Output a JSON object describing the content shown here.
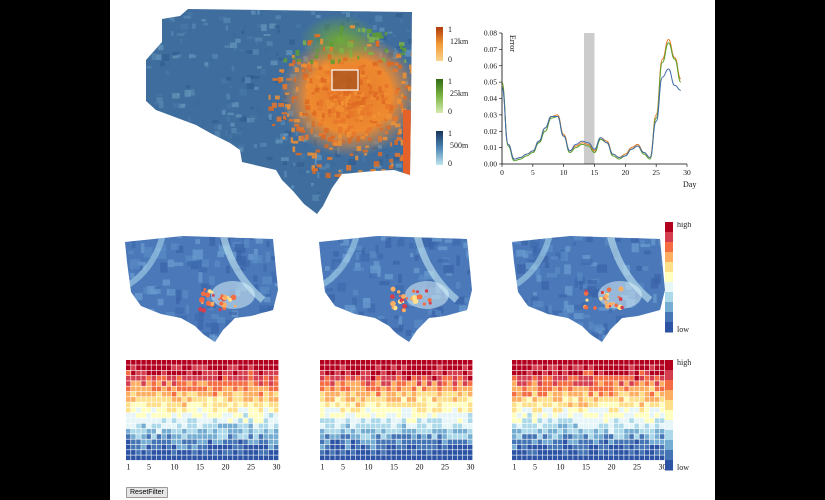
{
  "scale_legends": [
    {
      "name": "12km",
      "max": "1",
      "min": "0",
      "colors": [
        "#b03a0c",
        "#f29a35",
        "#fbd38a"
      ]
    },
    {
      "name": "25km",
      "max": "1",
      "min": "0",
      "colors": [
        "#2f6b13",
        "#7db544",
        "#d4ebb0"
      ]
    },
    {
      "name": "500m",
      "max": "1",
      "min": "0",
      "colors": [
        "#15345c",
        "#4f86b5",
        "#bfe5ef"
      ]
    }
  ],
  "heat_legend": {
    "high": "high",
    "low": "low"
  },
  "colors": {
    "spectral": [
      "#b4001f",
      "#d53e4f",
      "#f46d43",
      "#fdae61",
      "#fee08b",
      "#ffffbf",
      "#e6f5f7",
      "#abd9e9",
      "#74add1",
      "#4575b4",
      "#2c53a4"
    ],
    "brush": "#cccccc"
  },
  "chart_data": {
    "type": "line",
    "xlabel": "Day",
    "ylabel": "Error",
    "xlim": [
      0,
      30
    ],
    "ylim": [
      0,
      0.08
    ],
    "x_ticks": [
      "0",
      "5",
      "10",
      "15",
      "20",
      "25",
      "30"
    ],
    "y_ticks": [
      "0.00",
      "0.01",
      "0.02",
      "0.03",
      "0.04",
      "0.05",
      "0.06",
      "0.07",
      "0.08"
    ],
    "x": [
      0,
      1,
      2,
      3,
      4,
      5,
      6,
      7,
      8,
      9,
      10,
      11,
      12,
      13,
      14,
      15,
      16,
      17,
      18,
      19,
      20,
      21,
      22,
      23,
      24,
      25,
      26,
      27,
      28,
      29
    ],
    "highlight_range": [
      13.3,
      15.0
    ],
    "series": [
      {
        "color": "#e07b25",
        "values": [
          0.048,
          0.012,
          0.003,
          0.004,
          0.006,
          0.008,
          0.014,
          0.022,
          0.029,
          0.03,
          0.018,
          0.008,
          0.011,
          0.013,
          0.012,
          0.008,
          0.016,
          0.014,
          0.006,
          0.004,
          0.006,
          0.01,
          0.012,
          0.007,
          0.004,
          0.03,
          0.064,
          0.076,
          0.065,
          0.052
        ]
      },
      {
        "color": "#5a9e2a",
        "values": [
          0.05,
          0.011,
          0.002,
          0.003,
          0.005,
          0.007,
          0.013,
          0.02,
          0.028,
          0.029,
          0.017,
          0.007,
          0.01,
          0.012,
          0.011,
          0.007,
          0.015,
          0.013,
          0.005,
          0.003,
          0.005,
          0.009,
          0.011,
          0.006,
          0.003,
          0.028,
          0.062,
          0.074,
          0.064,
          0.05
        ]
      },
      {
        "color": "#3f6cab",
        "values": [
          0.047,
          0.012,
          0.003,
          0.004,
          0.006,
          0.008,
          0.014,
          0.022,
          0.029,
          0.029,
          0.017,
          0.008,
          0.012,
          0.014,
          0.013,
          0.009,
          0.016,
          0.013,
          0.006,
          0.004,
          0.005,
          0.009,
          0.011,
          0.007,
          0.004,
          0.026,
          0.053,
          0.058,
          0.048,
          0.045
        ]
      }
    ]
  },
  "matrix_ticks": [
    "1",
    "5",
    "10",
    "15",
    "20",
    "25",
    "30"
  ],
  "matrix_rows": 19,
  "matrix_cols": 30,
  "reset_label": "ResetFilter"
}
